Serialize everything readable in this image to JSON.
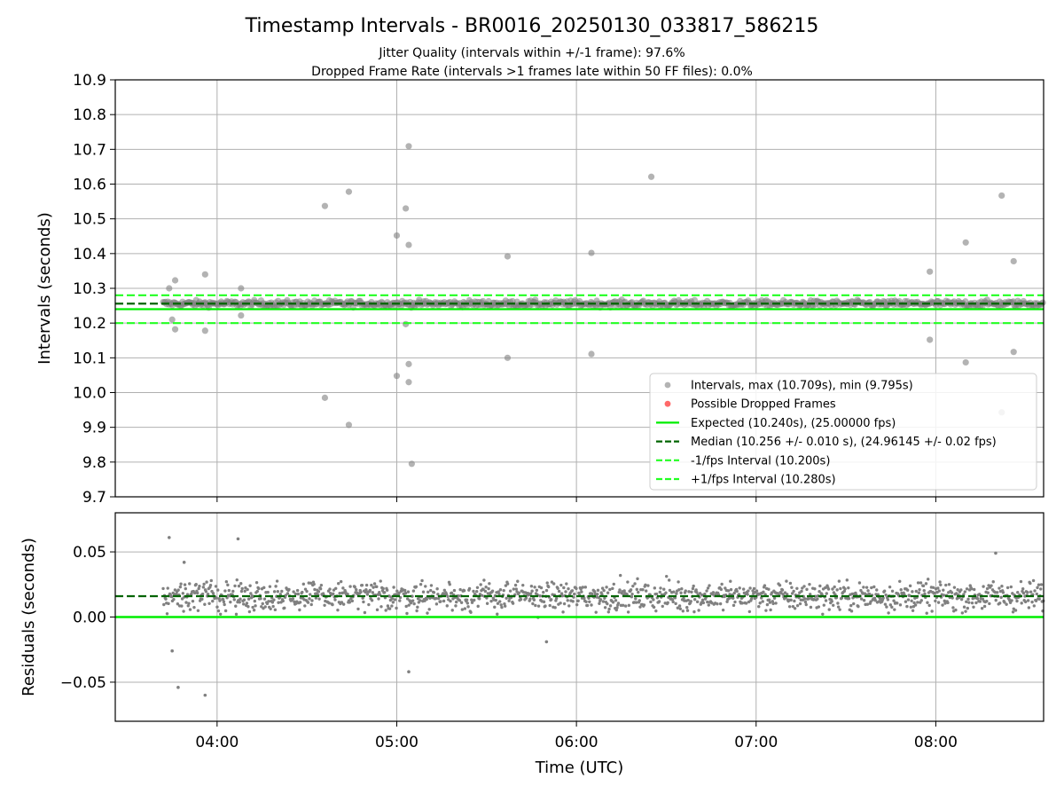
{
  "figure": {
    "title": "Timestamp Intervals - BR0016_20250130_033817_586215",
    "subtitle_1": "Jitter Quality (intervals within +/-1 frame): 97.6%",
    "subtitle_2": "Dropped Frame Rate (intervals >1 frames late within 50 FF files): 0.0%"
  },
  "colors": {
    "points": "#808080",
    "expected": "#00ee00",
    "median": "#006400",
    "fps_band": "#22ff22",
    "dropped": "#ff4444",
    "grid": "#b0b0b0"
  },
  "chart_data": [
    {
      "type": "scatter",
      "ylabel": "Intervals (seconds)",
      "xlabel": "",
      "xlim": [
        "03:26",
        "08:36"
      ],
      "ylim": [
        9.7,
        10.9
      ],
      "grid": true,
      "x_ticks": [
        "04:00",
        "05:00",
        "06:00",
        "07:00",
        "08:00"
      ],
      "y_ticks": [
        "9.7",
        "9.8",
        "9.9",
        "10.0",
        "10.1",
        "10.2",
        "10.3",
        "10.4",
        "10.5",
        "10.6",
        "10.7",
        "10.8",
        "10.9"
      ],
      "legend_position": "lower-right",
      "legend": [
        "Intervals, max (10.709s), min (9.795s)",
        "Possible Dropped Frames",
        "Expected (10.240s), (25.00000 fps)",
        "Median (10.256 +/- 0.010 s), (24.96145 +/- 0.02 fps)",
        "-1/fps Interval (10.200s)",
        "+1/fps Interval (10.280s)"
      ],
      "reference_lines": {
        "expected": 10.24,
        "median": 10.256,
        "minus_1fps": 10.2,
        "plus_1fps": 10.28
      },
      "series": [
        {
          "name": "Intervals, max (10.709s), min (9.795s)",
          "band": {
            "x_start": "03:42",
            "x_end": "08:36",
            "center": 10.256,
            "spread": 0.01
          },
          "outliers": [
            {
              "x": "03:44",
              "y": 10.3
            },
            {
              "x": "03:45",
              "y": 10.21
            },
            {
              "x": "03:46",
              "y": 10.323
            },
            {
              "x": "03:46",
              "y": 10.182
            },
            {
              "x": "03:56",
              "y": 10.34
            },
            {
              "x": "03:56",
              "y": 10.178
            },
            {
              "x": "04:08",
              "y": 10.3
            },
            {
              "x": "04:08",
              "y": 10.222
            },
            {
              "x": "04:36",
              "y": 10.537
            },
            {
              "x": "04:36",
              "y": 9.985
            },
            {
              "x": "04:44",
              "y": 10.578
            },
            {
              "x": "04:44",
              "y": 9.907
            },
            {
              "x": "05:00",
              "y": 10.452
            },
            {
              "x": "05:00",
              "y": 10.048
            },
            {
              "x": "05:03",
              "y": 10.53
            },
            {
              "x": "05:03",
              "y": 10.197
            },
            {
              "x": "05:04",
              "y": 10.425
            },
            {
              "x": "05:04",
              "y": 10.082
            },
            {
              "x": "05:04",
              "y": 10.03
            },
            {
              "x": "05:04",
              "y": 10.709
            },
            {
              "x": "05:05",
              "y": 9.795
            },
            {
              "x": "05:37",
              "y": 10.392
            },
            {
              "x": "05:37",
              "y": 10.1
            },
            {
              "x": "06:05",
              "y": 10.402
            },
            {
              "x": "06:05",
              "y": 10.111
            },
            {
              "x": "06:25",
              "y": 10.621
            },
            {
              "x": "07:58",
              "y": 10.348
            },
            {
              "x": "07:58",
              "y": 10.152
            },
            {
              "x": "08:10",
              "y": 10.432
            },
            {
              "x": "08:10",
              "y": 10.087
            },
            {
              "x": "08:22",
              "y": 10.567
            },
            {
              "x": "08:22",
              "y": 9.943
            },
            {
              "x": "08:26",
              "y": 10.378
            },
            {
              "x": "08:26",
              "y": 10.117
            }
          ]
        },
        {
          "name": "Possible Dropped Frames",
          "points": []
        }
      ]
    },
    {
      "type": "scatter",
      "ylabel": "Residuals (seconds)",
      "xlabel": "Time (UTC)",
      "xlim": [
        "03:26",
        "08:36"
      ],
      "ylim": [
        -0.08,
        0.08
      ],
      "grid": true,
      "x_ticks": [
        "04:00",
        "05:00",
        "06:00",
        "07:00",
        "08:00"
      ],
      "y_ticks": [
        "−0.05",
        "0.00",
        "0.05"
      ],
      "y_tick_values": [
        -0.05,
        0.0,
        0.05
      ],
      "reference_lines": {
        "zero": 0.0,
        "median_residual": 0.016
      },
      "series": [
        {
          "name": "",
          "band": {
            "x_start": "03:42",
            "x_end": "08:36",
            "center": 0.016,
            "spread": 0.011
          },
          "outliers": [
            {
              "x": "03:44",
              "y": 0.061
            },
            {
              "x": "03:45",
              "y": -0.026
            },
            {
              "x": "03:47",
              "y": -0.054
            },
            {
              "x": "03:56",
              "y": -0.06
            },
            {
              "x": "04:07",
              "y": 0.06
            },
            {
              "x": "05:04",
              "y": -0.042
            },
            {
              "x": "08:20",
              "y": 0.049
            },
            {
              "x": "03:49",
              "y": 0.042
            },
            {
              "x": "05:50",
              "y": -0.019
            }
          ]
        }
      ]
    }
  ]
}
